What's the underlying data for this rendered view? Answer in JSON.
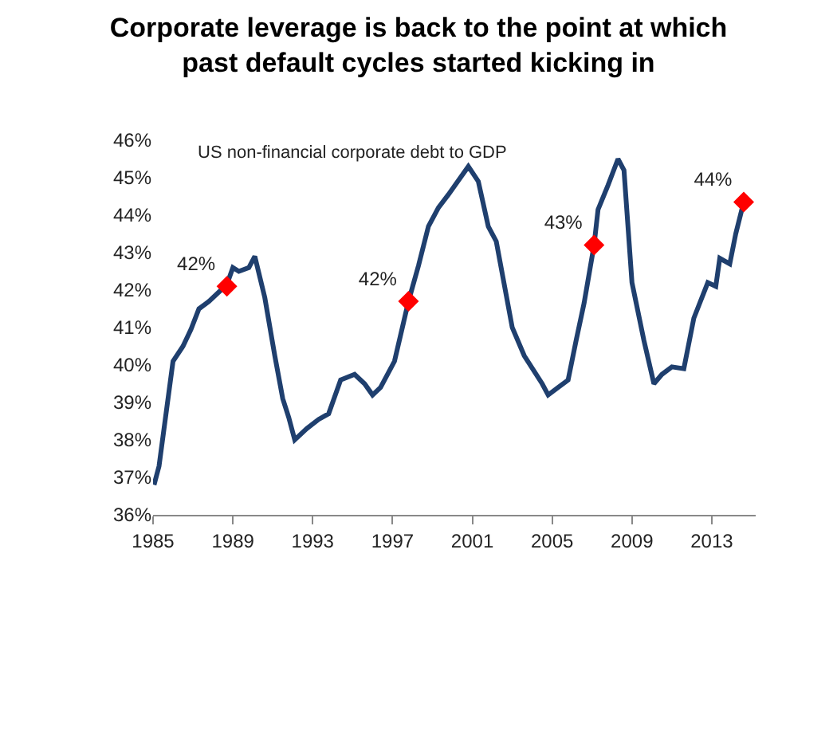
{
  "chart_data": {
    "type": "line",
    "title": "Corporate leverage is back to the point at which\npast default cycles started kicking in",
    "subtitle": "US non-financial corporate debt to GDP",
    "xlim": [
      1985,
      2015.2
    ],
    "xticks": [
      1985,
      1989,
      1993,
      1997,
      2001,
      2005,
      2009,
      2013
    ],
    "ylim": [
      36,
      46
    ],
    "yticks": [
      {
        "value": 36,
        "label": "36%"
      },
      {
        "value": 37,
        "label": "37%"
      },
      {
        "value": 38,
        "label": "38%"
      },
      {
        "value": 39,
        "label": "39%"
      },
      {
        "value": 40,
        "label": "40%"
      },
      {
        "value": 41,
        "label": "41%"
      },
      {
        "value": 42,
        "label": "42%"
      },
      {
        "value": 43,
        "label": "43%"
      },
      {
        "value": 44,
        "label": "44%"
      },
      {
        "value": 45,
        "label": "45%"
      },
      {
        "value": 46,
        "label": "46%"
      }
    ],
    "grid": false,
    "legend": false,
    "series": [
      {
        "color": "#1f3f6e",
        "marker": "none",
        "x": [
          1985.05,
          1985.3,
          1986.0,
          1986.5,
          1986.9,
          1987.3,
          1987.8,
          1988.7,
          1989.0,
          1989.3,
          1989.8,
          1990.1,
          1990.6,
          1991.1,
          1991.5,
          1991.8,
          1992.1,
          1992.7,
          1993.3,
          1993.8,
          1994.4,
          1995.1,
          1995.6,
          1996.0,
          1996.4,
          1997.1,
          1997.8,
          1998.3,
          1998.8,
          1999.3,
          1999.8,
          2000.4,
          2000.8,
          2001.3,
          2001.8,
          2002.2,
          2003.0,
          2003.6,
          2004.5,
          2004.8,
          2005.3,
          2005.8,
          2006.2,
          2006.6,
          2007.1,
          2007.3,
          2007.8,
          2008.3,
          2008.6,
          2009.0,
          2009.6,
          2010.1,
          2010.5,
          2011.0,
          2011.6,
          2012.1,
          2012.8,
          2013.2,
          2013.4,
          2013.9,
          2014.2,
          2014.6
        ],
        "values": [
          36.8,
          37.3,
          40.1,
          40.5,
          40.95,
          41.5,
          41.7,
          42.15,
          42.6,
          42.5,
          42.6,
          42.9,
          41.8,
          40.25,
          39.1,
          38.6,
          38.0,
          38.3,
          38.55,
          38.7,
          39.6,
          39.75,
          39.5,
          39.2,
          39.4,
          40.1,
          41.7,
          42.65,
          43.7,
          44.2,
          44.55,
          45.0,
          45.3,
          44.9,
          43.7,
          43.3,
          41.0,
          40.25,
          39.5,
          39.2,
          39.4,
          39.6,
          40.65,
          41.65,
          43.2,
          44.15,
          44.8,
          45.5,
          45.2,
          42.2,
          40.65,
          39.5,
          39.75,
          39.95,
          39.9,
          41.25,
          42.2,
          42.1,
          42.85,
          42.7,
          43.5,
          44.35
        ]
      },
      {
        "type": "scatter",
        "color": "#ff0000",
        "marker": "diamond",
        "x": [
          1988.7,
          1997.8,
          2007.1,
          2014.6
        ],
        "values": [
          42.1,
          41.7,
          43.2,
          44.35
        ],
        "value_labels": [
          "42%",
          "42%",
          "43%",
          "44%"
        ]
      }
    ]
  }
}
